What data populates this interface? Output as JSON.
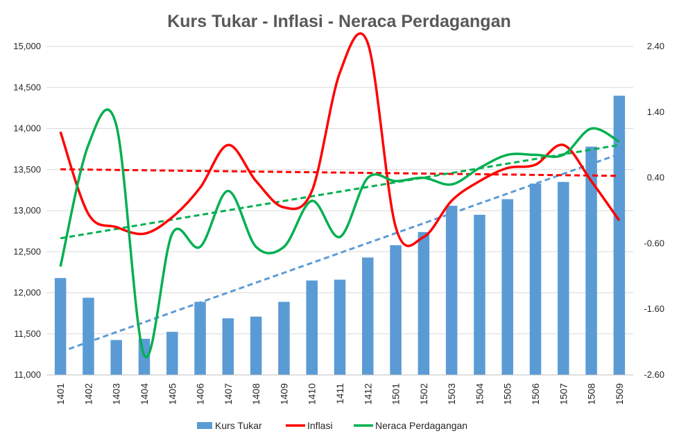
{
  "chart_data": {
    "type": "bar",
    "title": "Kurs Tukar - Inflasi - Neraca Perdagangan",
    "categories": [
      "1401",
      "1402",
      "1403",
      "1404",
      "1405",
      "1406",
      "1407",
      "1408",
      "1409",
      "1410",
      "1411",
      "1412",
      "1501",
      "1502",
      "1503",
      "1504",
      "1505",
      "1506",
      "1507",
      "1508",
      "1509"
    ],
    "series": [
      {
        "name": "Kurs Tukar",
        "kind": "bar",
        "axis": "left",
        "color": "#5B9BD5",
        "values": [
          12180,
          11940,
          11425,
          11440,
          11525,
          11890,
          11690,
          11710,
          11890,
          12150,
          12160,
          12430,
          12580,
          12740,
          13060,
          12950,
          13140,
          13330,
          13350,
          13780,
          14400
        ]
      },
      {
        "name": "Inflasi",
        "kind": "line",
        "axis": "right",
        "color": "#FF0000",
        "values": [
          1.1,
          -0.15,
          -0.35,
          -0.45,
          -0.2,
          0.25,
          0.9,
          0.35,
          -0.05,
          0.2,
          2.0,
          2.45,
          -0.35,
          -0.5,
          0.05,
          0.35,
          0.55,
          0.6,
          0.9,
          0.35,
          -0.25
        ]
      },
      {
        "name": "Neraca Perdagangan",
        "kind": "line",
        "axis": "right",
        "color": "#00B050",
        "values": [
          -0.95,
          0.9,
          1.2,
          -2.3,
          -0.45,
          -0.65,
          0.2,
          -0.65,
          -0.65,
          0.05,
          -0.5,
          0.4,
          0.35,
          0.4,
          0.3,
          0.55,
          0.75,
          0.75,
          0.75,
          1.15,
          0.95
        ]
      }
    ],
    "trendlines": [
      {
        "series": "Kurs Tukar",
        "axis": "left",
        "color": "#5B9BD5",
        "start": 11280,
        "end": 13690
      },
      {
        "series": "Inflasi",
        "axis": "right",
        "color": "#FF0000",
        "start": 0.53,
        "end": 0.43
      },
      {
        "series": "Neraca Perdagangan",
        "axis": "right",
        "color": "#00B050",
        "start": -0.52,
        "end": 0.9
      }
    ],
    "y_left": {
      "min": 11000,
      "max": 15000,
      "ticks": [
        "11,000",
        "11,500",
        "12,000",
        "12,500",
        "13,000",
        "13,500",
        "14,000",
        "14,500",
        "15,000"
      ]
    },
    "y_right": {
      "min": -2.6,
      "max": 2.4,
      "ticks": [
        "-2.60",
        "-1.60",
        "-0.60",
        "0.40",
        "1.40",
        "2.40"
      ]
    },
    "grid": "horizontal",
    "legend": "bottom-center"
  }
}
